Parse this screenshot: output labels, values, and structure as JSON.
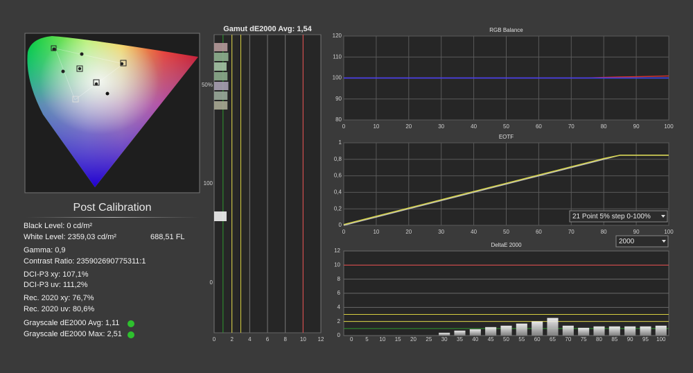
{
  "stats": {
    "title": "Post Calibration",
    "lines": [
      "Black Level: 0 cd/m²",
      "White Level: 2359,03 cd/m²",
      "Gamma: 0,9",
      "Contrast Ratio: 235902690775311:1",
      "DCI-P3 xy: 107,1%",
      "DCI-P3 uv: 111,2%",
      "Rec. 2020 xy: 76,7%",
      "Rec. 2020 uv: 80,6%",
      "Grayscale dE2000 Avg: 1,11",
      "Grayscale dE2000 Max: 2,51"
    ],
    "white_level_fl": "688,51 FL"
  },
  "controls": {
    "points_dropdown": "21 Point 5% step 0-100%",
    "nits_dropdown": "2000"
  },
  "chart_data": [
    {
      "type": "hbar",
      "title": "Gamut dE2000 Avg:  1,54",
      "xlim": [
        0,
        12
      ],
      "xticks": [
        0,
        2,
        4,
        6,
        8,
        10,
        12
      ],
      "row_labels": [
        "50%",
        "100",
        "0"
      ],
      "values": [
        1.5,
        1.6,
        1.4,
        1.5,
        1.6,
        1.5,
        1.5,
        1.4
      ],
      "colors": [
        "#b59a9a",
        "#8fb08f",
        "#a5c4a5",
        "#8cab8c",
        "#a9a0b2",
        "#9aaa9a",
        "#a8a894",
        "#f2f2f2"
      ],
      "thresholds": [
        {
          "value": 1,
          "color": "#2f9a2f"
        },
        {
          "value": 2,
          "color": "#d8d040"
        },
        {
          "value": 3,
          "color": "#d8d040"
        },
        {
          "value": 10,
          "color": "#e04848"
        }
      ]
    },
    {
      "type": "line",
      "title": "RGB Balance",
      "x": [
        0,
        5,
        10,
        15,
        20,
        25,
        30,
        35,
        40,
        45,
        50,
        55,
        60,
        65,
        70,
        75,
        80,
        85,
        90,
        95,
        100
      ],
      "xlim": [
        0,
        100
      ],
      "xticks": [
        0,
        10,
        20,
        30,
        40,
        50,
        60,
        70,
        80,
        90,
        100
      ],
      "ylim": [
        80,
        120
      ],
      "yticks": [
        80,
        90,
        100,
        110,
        120
      ],
      "series": [
        {
          "color": "#2a9a2a",
          "values": [
            100,
            100,
            100,
            100,
            100,
            100,
            100,
            100,
            100,
            100,
            100,
            100,
            100,
            100,
            100,
            100,
            100,
            100,
            100,
            100,
            100
          ]
        },
        {
          "color": "#d03030",
          "values": [
            100,
            100,
            100,
            100,
            100,
            100,
            100,
            100,
            100,
            100,
            100,
            100,
            100,
            100,
            100,
            100,
            100.3,
            100.5,
            100.6,
            100.8,
            101
          ]
        },
        {
          "color": "#3a3aff",
          "values": [
            100,
            100,
            100,
            100,
            100,
            100,
            100,
            100,
            100,
            100,
            100,
            100,
            100,
            100,
            100,
            100,
            100,
            100,
            100,
            100,
            100
          ]
        }
      ]
    },
    {
      "type": "line",
      "title": "EOTF",
      "x": [
        0,
        5,
        10,
        15,
        20,
        25,
        30,
        35,
        40,
        45,
        50,
        55,
        60,
        65,
        70,
        75,
        80,
        85,
        90,
        95,
        100
      ],
      "xlim": [
        0,
        100
      ],
      "xticks": [
        0,
        10,
        20,
        30,
        40,
        50,
        60,
        70,
        80,
        90,
        100
      ],
      "ylim": [
        0,
        1
      ],
      "yticks": [
        0,
        {
          "value": 0.2,
          "label": "0,2"
        },
        {
          "value": 0.4,
          "label": "0,4"
        },
        {
          "value": 0.6,
          "label": "0,6"
        },
        {
          "value": 0.8,
          "label": "0,8"
        },
        1
      ],
      "series": [
        {
          "color": "#bdbdbd",
          "values": [
            0,
            0.05,
            0.1,
            0.15,
            0.2,
            0.25,
            0.3,
            0.35,
            0.4,
            0.45,
            0.5,
            0.55,
            0.6,
            0.65,
            0.7,
            0.75,
            0.8,
            0.85,
            0.85,
            0.85,
            0.85
          ]
        },
        {
          "color": "#d6d44a",
          "values": [
            0.01,
            0.06,
            0.11,
            0.16,
            0.21,
            0.26,
            0.31,
            0.36,
            0.41,
            0.46,
            0.51,
            0.56,
            0.61,
            0.66,
            0.71,
            0.76,
            0.81,
            0.85,
            0.85,
            0.85,
            0.85
          ]
        }
      ]
    },
    {
      "type": "bar",
      "title": "DeltaE 2000",
      "categories": [
        0,
        5,
        10,
        15,
        20,
        25,
        30,
        35,
        40,
        45,
        50,
        55,
        60,
        65,
        70,
        75,
        80,
        85,
        90,
        95,
        100
      ],
      "values": [
        0,
        0,
        0,
        0,
        0,
        0,
        0.4,
        0.7,
        0.9,
        1.2,
        1.4,
        1.7,
        2.0,
        2.5,
        1.4,
        1.1,
        1.3,
        1.3,
        1.3,
        1.3,
        1.4
      ],
      "ylim": [
        0,
        12
      ],
      "yticks": [
        0,
        2,
        4,
        6,
        8,
        10,
        12
      ],
      "thresholds": [
        {
          "value": 1,
          "color": "#2f9a2f"
        },
        {
          "value": 2,
          "color": "#d8d040"
        },
        {
          "value": 3,
          "color": "#d8d040"
        },
        {
          "value": 10,
          "color": "#e04848"
        }
      ]
    }
  ]
}
